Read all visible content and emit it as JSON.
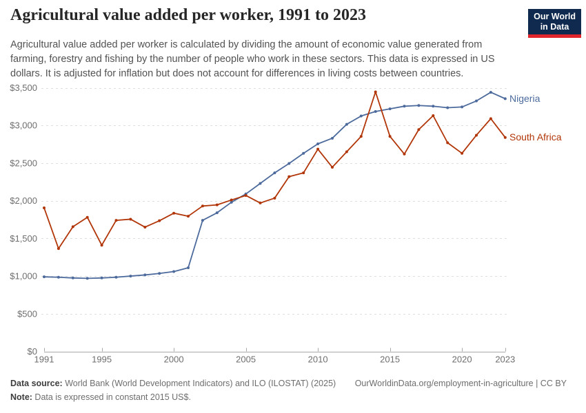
{
  "header": {
    "title": "Agricultural value added per worker, 1991 to 2023",
    "subtitle": "Agricultural value added per worker is calculated by dividing the amount of economic value generated from farming, forestry and fishing by the number of people who work in these sectors. This data is expressed in US dollars. It is adjusted for inflation but does not account for differences in living costs between countries.",
    "logo": {
      "line1": "Our World",
      "line2": "in Data",
      "bg_color": "#10294e",
      "accent_color": "#e0262c"
    }
  },
  "chart_data": {
    "type": "line",
    "title": "Agricultural value added per worker, 1991 to 2023",
    "x": [
      1991,
      1992,
      1993,
      1994,
      1995,
      1996,
      1997,
      1998,
      1999,
      2000,
      2001,
      2002,
      2003,
      2004,
      2005,
      2006,
      2007,
      2008,
      2009,
      2010,
      2011,
      2012,
      2013,
      2014,
      2015,
      2016,
      2017,
      2018,
      2019,
      2020,
      2021,
      2022,
      2023
    ],
    "series": [
      {
        "name": "Nigeria",
        "color": "#4C6A9C",
        "values": [
          990,
          985,
          975,
          970,
          975,
          985,
          1000,
          1015,
          1035,
          1060,
          1110,
          1740,
          1840,
          1980,
          2090,
          2230,
          2370,
          2495,
          2630,
          2755,
          2830,
          3015,
          3125,
          3185,
          3220,
          3255,
          3265,
          3255,
          3235,
          3245,
          3325,
          3440,
          3355
        ]
      },
      {
        "name": "South Africa",
        "color": "#B13507",
        "values": [
          1905,
          1365,
          1655,
          1780,
          1410,
          1740,
          1755,
          1650,
          1735,
          1835,
          1795,
          1930,
          1945,
          2010,
          2070,
          1970,
          2035,
          2320,
          2370,
          2685,
          2445,
          2650,
          2855,
          3445,
          2855,
          2620,
          2945,
          3130,
          2770,
          2630,
          2870,
          3090,
          2840
        ]
      }
    ],
    "xlim": [
      1991,
      2023
    ],
    "ylim": [
      0,
      3500
    ],
    "grid": true,
    "legend_position": "right-of-line-end",
    "yticks": [
      0,
      500,
      1000,
      1500,
      2000,
      2500,
      3000,
      3500
    ],
    "ytick_labels": [
      "$0",
      "$500",
      "$1,000",
      "$1,500",
      "$2,000",
      "$2,500",
      "$3,000",
      "$3,500"
    ],
    "xticks": [
      1991,
      1995,
      2000,
      2005,
      2010,
      2015,
      2020,
      2023
    ],
    "xtick_labels": [
      "1991",
      "1995",
      "2000",
      "2005",
      "2010",
      "2015",
      "2020",
      "2023"
    ]
  },
  "footer": {
    "source_label": "Data source:",
    "source_text": " World Bank (World Development Indicators) and ILO (ILOSTAT) (2025)",
    "credit": "OurWorldinData.org/employment-in-agriculture | CC BY",
    "note_label": "Note:",
    "note_text": " Data is expressed in constant 2015 US$."
  }
}
